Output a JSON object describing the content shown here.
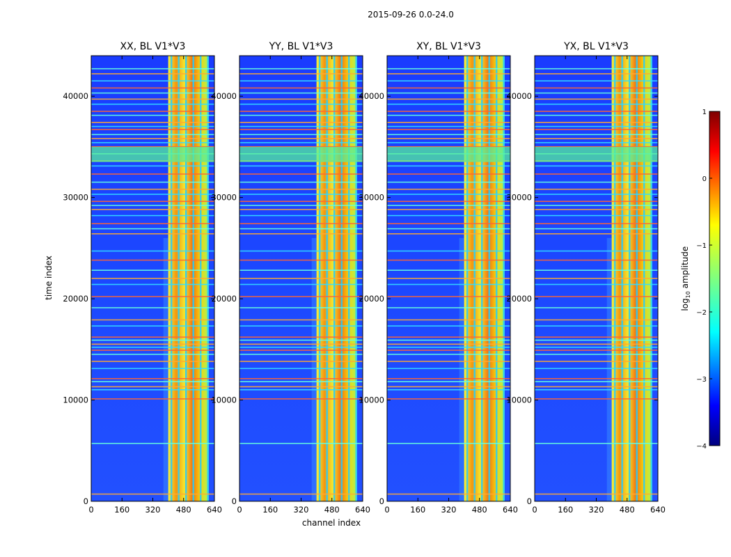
{
  "figure": {
    "title": "2015-09-26 0.0-24.0"
  },
  "chart_data": [
    {
      "type": "heatmap",
      "title": "XX, BL V1*V3",
      "xlabel": "",
      "ylabel": "time index",
      "xlim": [
        0,
        640
      ],
      "ylim": [
        0,
        44000
      ],
      "xticks": [
        "0",
        "160",
        "320",
        "480",
        "640"
      ],
      "yticks": [
        "0",
        "10000",
        "20000",
        "30000",
        "40000"
      ],
      "feature_channels": [
        400,
        610
      ]
    },
    {
      "type": "heatmap",
      "title": "YY, BL V1*V3",
      "xlabel": "channel index",
      "ylabel": "",
      "xlim": [
        0,
        640
      ],
      "ylim": [
        0,
        44000
      ],
      "xticks": [
        "0",
        "160",
        "320",
        "480",
        "640"
      ],
      "yticks": [
        "0",
        "10000",
        "20000",
        "30000",
        "40000"
      ],
      "feature_channels": [
        400,
        610
      ]
    },
    {
      "type": "heatmap",
      "title": "XY, BL V1*V3",
      "xlabel": "",
      "ylabel": "",
      "xlim": [
        0,
        640
      ],
      "ylim": [
        0,
        44000
      ],
      "xticks": [
        "0",
        "160",
        "320",
        "480",
        "640"
      ],
      "yticks": [
        "0",
        "10000",
        "20000",
        "30000",
        "40000"
      ],
      "feature_channels": [
        400,
        610
      ]
    },
    {
      "type": "heatmap",
      "title": "YX, BL V1*V3",
      "xlabel": "",
      "ylabel": "",
      "xlim": [
        0,
        640
      ],
      "ylim": [
        0,
        44000
      ],
      "xticks": [
        "0",
        "160",
        "320",
        "480",
        "640"
      ],
      "yticks": [
        "0",
        "10000",
        "20000",
        "30000",
        "40000"
      ],
      "feature_channels": [
        400,
        610
      ]
    }
  ],
  "colorbar": {
    "label_main": "log",
    "label_sub": "10",
    "label_rest": " amplitude",
    "range": [
      -4,
      1
    ],
    "ticks": [
      "1",
      "0",
      "−1",
      "−2",
      "−3",
      "−4"
    ],
    "colormap": "jet"
  },
  "rfi_rows": [
    700,
    5700,
    10100,
    11000,
    11300,
    11800,
    12100,
    13100,
    13800,
    14500,
    14900,
    15200,
    15500,
    15900,
    16200,
    17300,
    17900,
    19100,
    20200,
    21400,
    22000,
    22800,
    23800,
    24700,
    26400,
    26900,
    27400,
    28200,
    28800,
    29200,
    29600,
    30300,
    30800,
    31500,
    32300,
    33100,
    33600,
    34300,
    35000,
    35400,
    35800,
    36200,
    36700,
    37000,
    37400,
    38100,
    38500,
    39200,
    39700,
    40300,
    40800,
    41500,
    42200,
    42700
  ],
  "dense_band": [
    33500,
    35000
  ]
}
